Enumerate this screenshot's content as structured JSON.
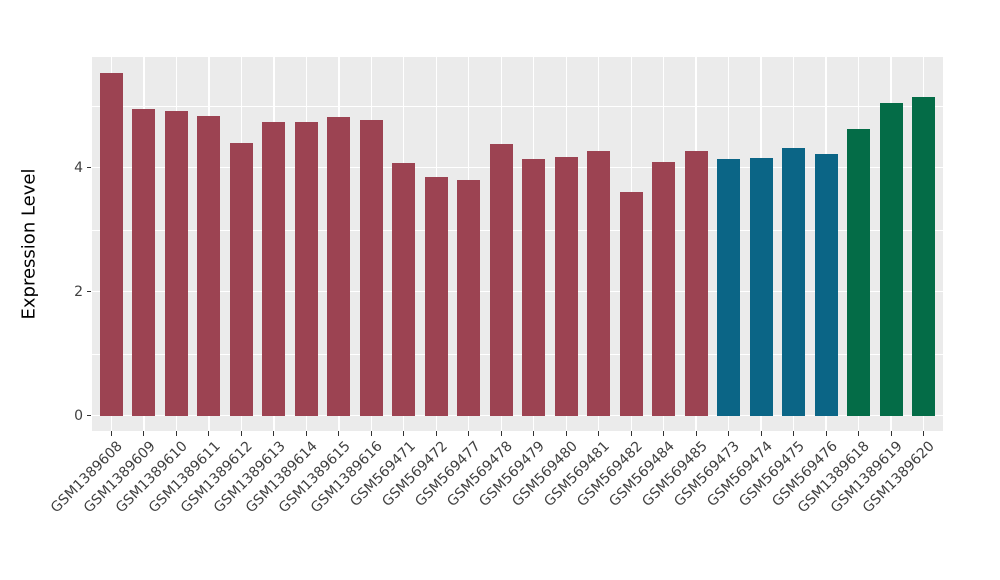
{
  "chart_data": {
    "type": "bar",
    "title": "",
    "xlabel": "",
    "ylabel": "Expression Level",
    "ylim": [
      -0.27,
      5.78
    ],
    "yticks": [
      0,
      2,
      4
    ],
    "yticks_minor": [
      1,
      3,
      5
    ],
    "grid": "major+minor, white on grey panel",
    "legend_position": "none",
    "panel_background": "#EBEBEB",
    "grid_color": "#FFFFFF",
    "axis_text_color": "#404040",
    "categories": [
      "GSM1389608",
      "GSM1389609",
      "GSM1389610",
      "GSM1389611",
      "GSM1389612",
      "GSM1389613",
      "GSM1389614",
      "GSM1389615",
      "GSM1389616",
      "GSM569471",
      "GSM569472",
      "GSM569477",
      "GSM569478",
      "GSM569479",
      "GSM569480",
      "GSM569481",
      "GSM569482",
      "GSM569484",
      "GSM569485",
      "GSM569473",
      "GSM569474",
      "GSM569475",
      "GSM569476",
      "GSM1389618",
      "GSM1389619",
      "GSM1389620"
    ],
    "values": [
      5.52,
      4.94,
      4.91,
      4.83,
      4.4,
      4.73,
      4.73,
      4.81,
      4.77,
      4.07,
      3.84,
      3.8,
      4.38,
      4.14,
      4.17,
      4.27,
      3.6,
      4.09,
      4.27,
      4.14,
      4.15,
      4.32,
      4.21,
      4.62,
      5.04,
      5.14
    ],
    "palette": {
      "maroon": "#9C4352",
      "teal": "#0B6586",
      "green": "#046C47"
    },
    "bar_colors": [
      "maroon",
      "maroon",
      "maroon",
      "maroon",
      "maroon",
      "maroon",
      "maroon",
      "maroon",
      "maroon",
      "maroon",
      "maroon",
      "maroon",
      "maroon",
      "maroon",
      "maroon",
      "maroon",
      "maroon",
      "maroon",
      "maroon",
      "teal",
      "teal",
      "teal",
      "teal",
      "green",
      "green",
      "green"
    ]
  }
}
